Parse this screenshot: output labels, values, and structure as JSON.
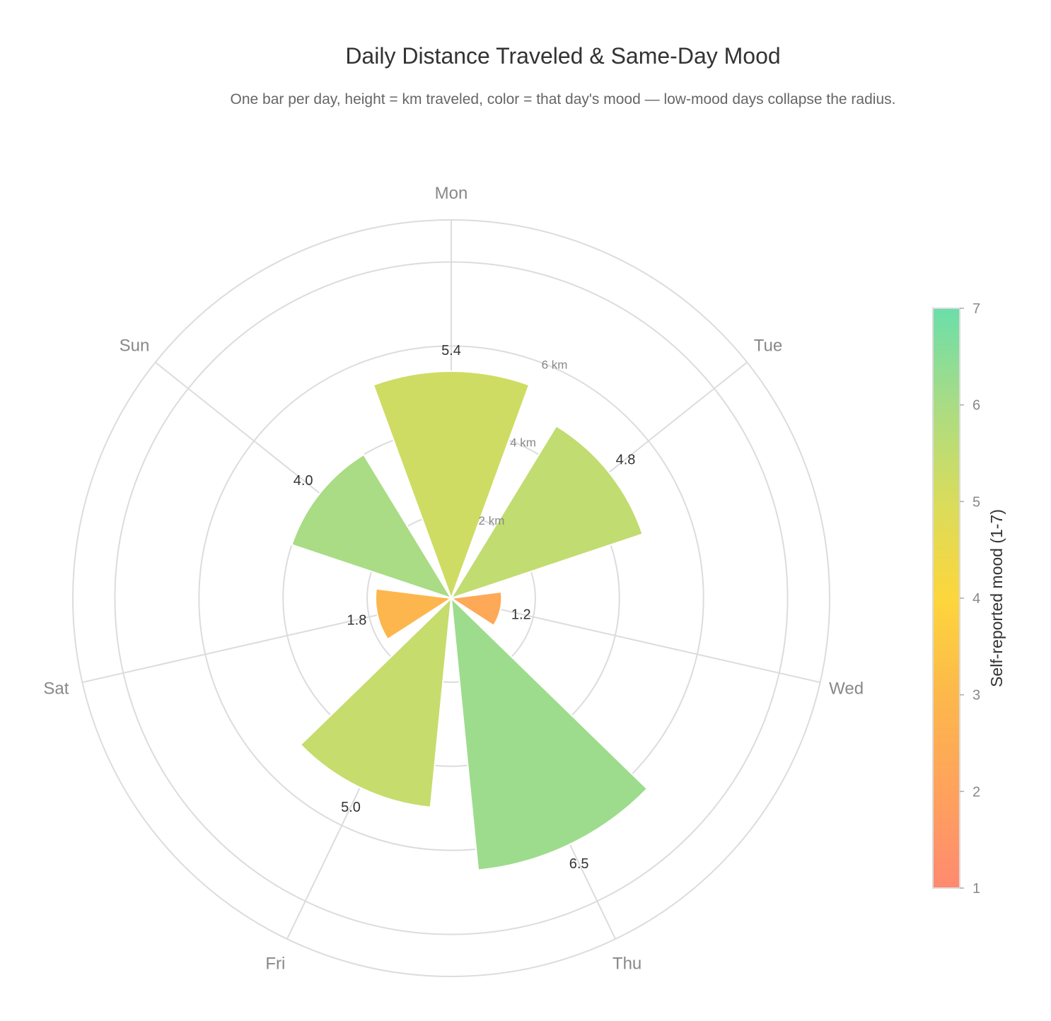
{
  "title": "Daily Distance Traveled & Same-Day Mood",
  "subtitle": "One bar per day, height = km traveled, color = that day's mood — low-mood days collapse the radius.",
  "chart_data": {
    "type": "bar",
    "projection": "polar",
    "categories": [
      "Mon",
      "Tue",
      "Wed",
      "Thu",
      "Fri",
      "Sat",
      "Sun"
    ],
    "values": [
      5.4,
      4.8,
      1.2,
      6.5,
      5.0,
      1.8,
      4.0
    ],
    "value_labels": [
      "5.4",
      "4.8",
      "1.2",
      "6.5",
      "5.0",
      "1.8",
      "4.0"
    ],
    "mood": [
      5.2,
      5.5,
      2.3,
      6.2,
      5.4,
      2.9,
      6.0
    ],
    "radial_axis": {
      "range": [
        0,
        9
      ],
      "ticks": [
        2,
        4,
        6
      ],
      "tick_labels": [
        "2 km",
        "4 km",
        "6 km"
      ]
    },
    "colorbar": {
      "title": "Self-reported mood (1-7)",
      "range": [
        1,
        7
      ],
      "ticks": [
        "1",
        "2",
        "3",
        "4",
        "5",
        "6",
        "7"
      ],
      "colorscale": [
        "#ff8a70",
        "#ffa25c",
        "#fdb84b",
        "#fdd63c",
        "#d9dc5c",
        "#a9dc84",
        "#6bdeaa"
      ]
    },
    "grid": true,
    "legend": "right"
  }
}
